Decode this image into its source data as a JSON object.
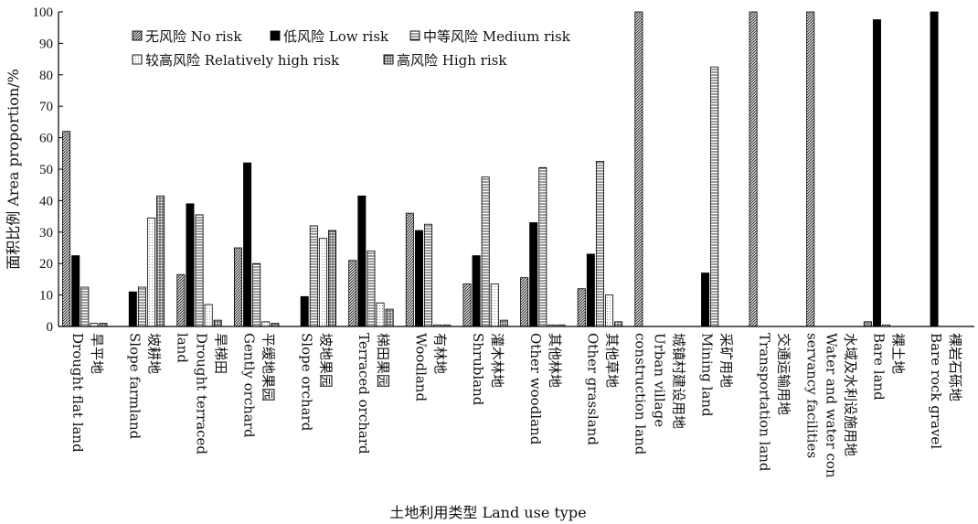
{
  "chart_data": {
    "type": "bar",
    "xlabel": "土地利用类型 Land use type",
    "ylabel": "面积比例 Area proportion/%",
    "ylim": [
      0,
      100
    ],
    "yticks": [
      0,
      10,
      20,
      30,
      40,
      50,
      60,
      70,
      80,
      90,
      100
    ],
    "legend_position": "top-left",
    "categories": [
      [
        "旱平地",
        "Drought flat land"
      ],
      [
        "坡耕地",
        "Slope farmland"
      ],
      [
        "旱梯田",
        "Drought terraced",
        "land"
      ],
      [
        "平缓地果园",
        "Gently orchard"
      ],
      [
        "坡地果园",
        "Slope orchard"
      ],
      [
        "梯田果园",
        "Terraced orchard"
      ],
      [
        "有林地",
        "Woodland"
      ],
      [
        "灌木林地",
        "Shrubland"
      ],
      [
        "其他林地",
        "Other woodland"
      ],
      [
        "其他草地",
        "Other grassland"
      ],
      [
        "城镇村建设用地",
        "Urban village",
        "construction land"
      ],
      [
        "采矿用地",
        "Mining land"
      ],
      [
        "交通运输用地",
        "Transportation land"
      ],
      [
        "水域及水利设施用地",
        "Water and water con",
        "servancy facilities"
      ],
      [
        "裸土地",
        "Bare land"
      ],
      [
        "裸岩石砾地",
        "Bare rock gravel"
      ]
    ],
    "series": [
      {
        "name": "无风险 No risk",
        "pattern": "diagonal",
        "values": [
          62,
          0,
          16.5,
          25,
          0,
          21,
          36,
          13.5,
          15.5,
          12,
          100,
          0,
          100,
          100,
          1.5,
          0
        ]
      },
      {
        "name": "低风险 Low risk",
        "pattern": "solid",
        "values": [
          22.5,
          11,
          39,
          52,
          9.5,
          41.5,
          30.5,
          22.5,
          33,
          23,
          0,
          17,
          0,
          0,
          97.5,
          100
        ]
      },
      {
        "name": "中等风险 Medium risk",
        "pattern": "horizontal",
        "values": [
          12.5,
          12.5,
          35.5,
          20,
          32,
          24,
          32.5,
          47.5,
          50.5,
          52.5,
          0,
          82.5,
          0,
          0,
          0.5,
          0
        ]
      },
      {
        "name": "较高风险 Relatively high risk",
        "pattern": "dotted",
        "values": [
          1,
          34.5,
          7,
          1.5,
          28,
          7.5,
          0.5,
          13.5,
          0.5,
          10,
          0,
          0,
          0,
          0,
          0,
          0
        ]
      },
      {
        "name": "高风险 High risk",
        "pattern": "grid",
        "values": [
          1,
          41.5,
          2,
          1,
          30.5,
          5.5,
          0.5,
          2,
          0.5,
          1.5,
          0,
          0,
          0,
          0,
          0,
          0
        ]
      }
    ]
  }
}
